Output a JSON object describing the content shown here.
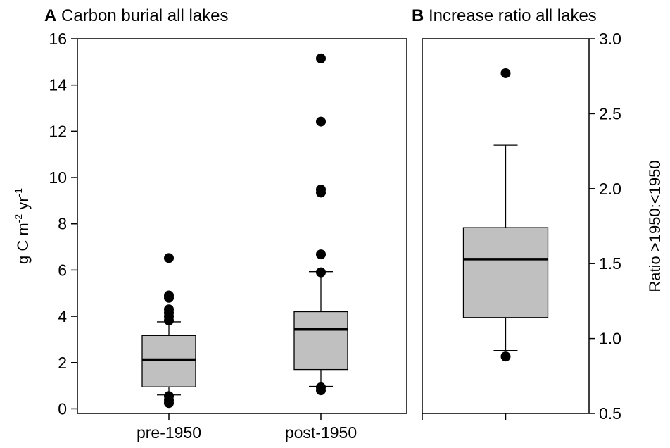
{
  "chart_data": [
    {
      "type": "box",
      "panel": "A",
      "title": "Carbon burial all lakes",
      "ylabel": [
        "g C m",
        "-2",
        " yr",
        "-1"
      ],
      "categories": [
        "pre-1950",
        "post-1950"
      ],
      "series": [
        {
          "color": "#c0c0c0",
          "boxes": [
            {
              "min": 0.6,
              "q1": 0.95,
              "median": 2.13,
              "q3": 3.17,
              "max": 3.76,
              "outliers": [
                6.52,
                4.9,
                4.8,
                4.3,
                4.15,
                4.0,
                3.82,
                0.55,
                0.38,
                0.25
              ]
            },
            {
              "min": 0.97,
              "q1": 1.7,
              "median": 3.43,
              "q3": 4.2,
              "max": 5.93,
              "outliers": [
                15.15,
                12.42,
                9.48,
                9.35,
                6.68,
                5.9,
                0.93,
                0.8
              ]
            }
          ]
        }
      ],
      "ylim": [
        -0.2,
        16
      ],
      "yticks": [
        0,
        2,
        4,
        6,
        8,
        10,
        12,
        14,
        16
      ],
      "yaxis": "left"
    },
    {
      "type": "box",
      "panel": "B",
      "title": "Increase ratio all lakes",
      "ylabel": [
        "Ratio >1950:<1950"
      ],
      "categories": [
        null
      ],
      "series": [
        {
          "color": "#c0c0c0",
          "boxes": [
            {
              "min": 0.92,
              "q1": 1.14,
              "median": 1.53,
              "q3": 1.74,
              "max": 2.29,
              "outliers": [
                2.77,
                0.88
              ]
            }
          ]
        }
      ],
      "ylim": [
        0.5,
        3.0
      ],
      "yticks": [
        0.5,
        {
          "value": 1.0,
          "label": "1.0"
        },
        1.5,
        {
          "value": 2.0,
          "label": "2.0"
        },
        2.5,
        {
          "value": 3.0,
          "label": "3.0"
        }
      ],
      "yaxis": "right"
    }
  ]
}
